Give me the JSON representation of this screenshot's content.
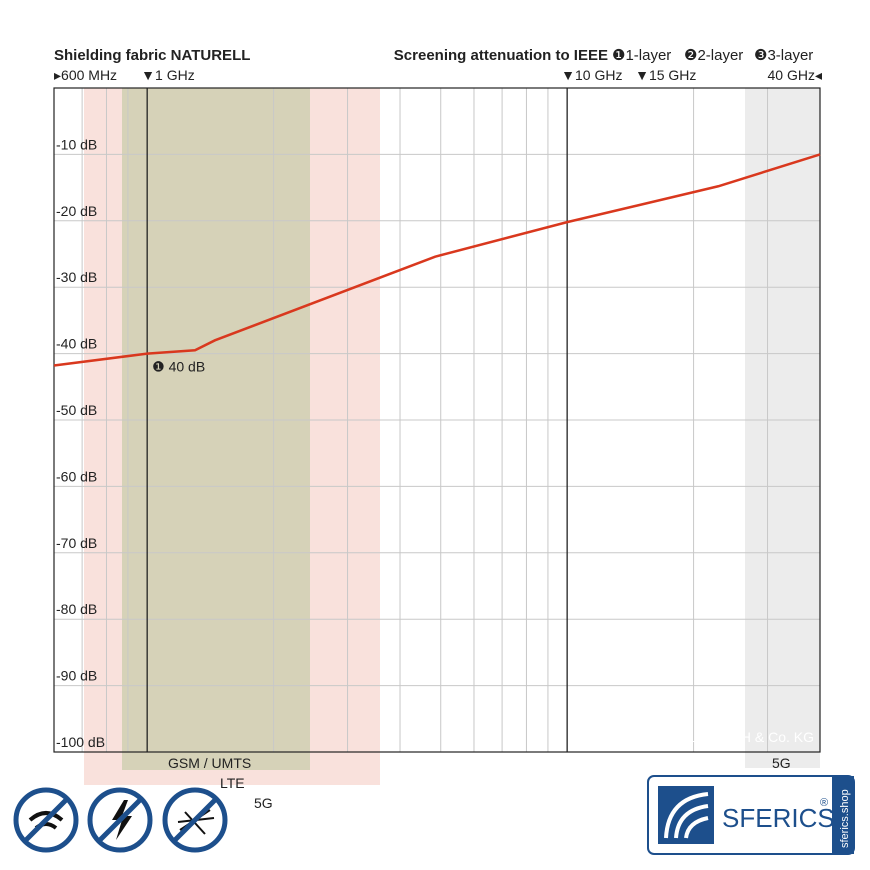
{
  "chart_data": {
    "type": "line",
    "title": "Shielding fabric NATURELL",
    "subtitle": "Screening attenuation to IEEE",
    "legend": [
      "❶1-layer",
      "❷2-layer",
      "❸3-layer"
    ],
    "x_log": true,
    "xlim": [
      0.6,
      40
    ],
    "ylim": [
      -100,
      0
    ],
    "xticks": [
      {
        "value": 0.6,
        "label": "▸600 MHz"
      },
      {
        "value": 1,
        "label": "▼1 GHz"
      },
      {
        "value": 10,
        "label": "▼10 GHz"
      },
      {
        "value": 15,
        "label": "▼15 GHz"
      },
      {
        "value": 40,
        "label": "40 GHz◂"
      }
    ],
    "xgrid": [
      0.7,
      0.8,
      0.9,
      2,
      3,
      4,
      5,
      6,
      7,
      8,
      9,
      20,
      30
    ],
    "xmarkers": [
      1,
      10
    ],
    "yticks": [
      {
        "value": -10,
        "label": "-10 dB"
      },
      {
        "value": -20,
        "label": "-20 dB"
      },
      {
        "value": -30,
        "label": "-30 dB"
      },
      {
        "value": -40,
        "label": "-40 dB"
      },
      {
        "value": -50,
        "label": "-50 dB"
      },
      {
        "value": -60,
        "label": "-60 dB"
      },
      {
        "value": -70,
        "label": "-70 dB"
      },
      {
        "value": -80,
        "label": "-80 dB"
      },
      {
        "value": -90,
        "label": "-90 dB"
      },
      {
        "value": -100,
        "label": "-100 dB"
      }
    ],
    "series": [
      {
        "name": "1-layer",
        "color": "#d9381e",
        "x": [
          0.6,
          1,
          1.3,
          1.45,
          4.85,
          10,
          22.9,
          40
        ],
        "values": [
          -41.8,
          -40,
          -39.5,
          -38,
          -25.4,
          -20.2,
          -14.8,
          -10
        ]
      }
    ],
    "annotation": {
      "text": "❶ 40 dB",
      "x": 1,
      "y": -40
    },
    "bands": [
      "GSM / UMTS",
      "LTE",
      "5G",
      "5G"
    ],
    "copyright": "© YSHIELD GmbH & Co. KG",
    "logo": "SFERICS",
    "logo_mark": "®",
    "shop": "sferics.shop"
  }
}
